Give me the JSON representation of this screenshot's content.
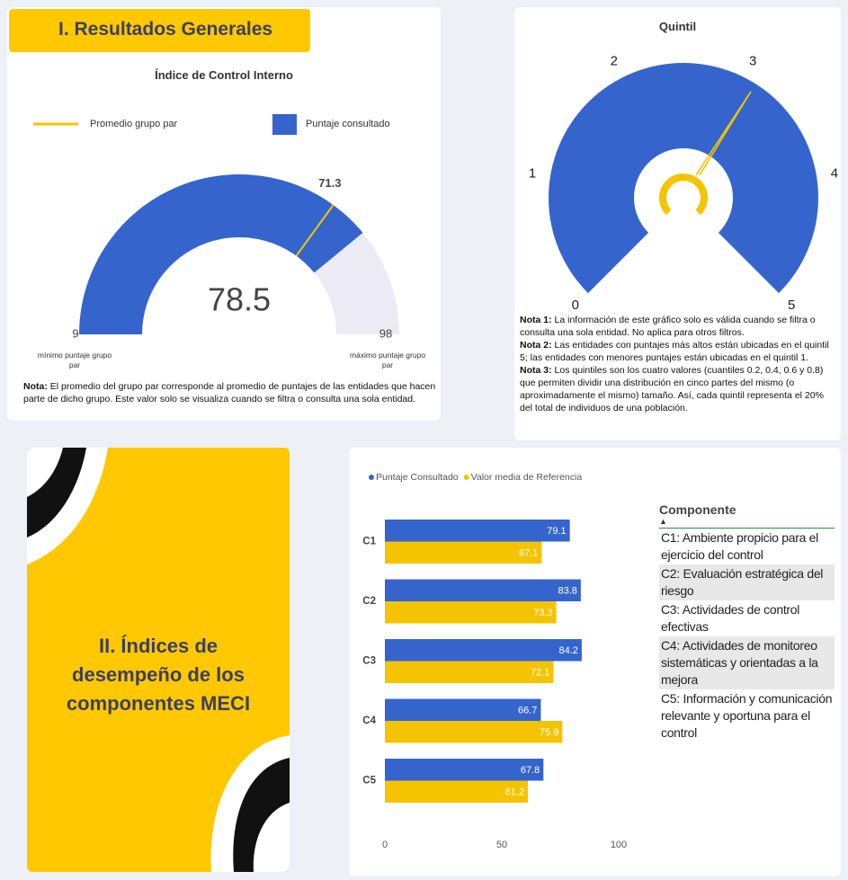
{
  "header": {
    "title": "I. Resultados Generales"
  },
  "gauge": {
    "title": "Índice de Control Interno",
    "legend": [
      {
        "name": "Promedio grupo par",
        "color": "#f5c400"
      },
      {
        "name": "Puntaje consultado",
        "color": "#3565cc"
      }
    ],
    "value": 78.5,
    "reference": 71.3,
    "min": 9,
    "max": 98,
    "min_label": "mínimo puntaje grupo par",
    "max_label": "máximo puntaje grupo par",
    "note_label": "Nota:",
    "note": "El promedio del grupo par corresponde al promedio de puntajes de las entidades que hacen parte de dicho grupo.  Este valor solo se visualiza cuando se filtra o consulta una sola entidad."
  },
  "quintil": {
    "title": "Quintil",
    "ticks": [
      0,
      1,
      2,
      3,
      4,
      5
    ],
    "value": 3.1,
    "notes": [
      {
        "label": "Nota 1:",
        "text": "La información de este gráfico solo es válida cuando se filtra o consulta una sola entidad. No aplica para otros filtros."
      },
      {
        "label": "Nota 2:",
        "text": "Las entidades con puntajes más altos están ubicadas en el quintil 5; las entidades con menores puntajes están ubicadas en el quintil 1."
      },
      {
        "label": "Nota 3:",
        "text": "Los quintiles son los cuatro valores (cuantiles 0.2, 0.4, 0.6 y 0.8) que permiten dividir una distribución en cinco partes del mismo (o aproximadamente el mismo) tamaño. Así, cada quintil representa el 20% del total de individuos de una población."
      }
    ]
  },
  "section2": {
    "title": "II. Índices de desempeño de los componentes MECI"
  },
  "chart_data": {
    "type": "bar",
    "orientation": "horizontal",
    "categories": [
      "C1",
      "C2",
      "C3",
      "C4",
      "C5"
    ],
    "series": [
      {
        "name": "Puntaje Consultado",
        "color": "#3565cc",
        "values": [
          79.1,
          83.8,
          84.2,
          66.7,
          67.8
        ]
      },
      {
        "name": "Valor media de Referencia",
        "color": "#f5c400",
        "values": [
          67.1,
          73.3,
          72.1,
          75.9,
          61.2
        ]
      }
    ],
    "xlim": [
      0,
      100
    ],
    "xticks": [
      0,
      50,
      100
    ]
  },
  "table": {
    "header": "Componente",
    "sort_indicator": "▲",
    "rows": [
      "C1: Ambiente propicio para el ejercicio del control",
      "C2: Evaluación estratégica del riesgo",
      "C3: Actividades de control efectivas",
      "C4: Actividades de monitoreo sistemáticas y orientadas a la mejora",
      "C5: Información y comunicación relevante y oportuna para el control"
    ]
  }
}
